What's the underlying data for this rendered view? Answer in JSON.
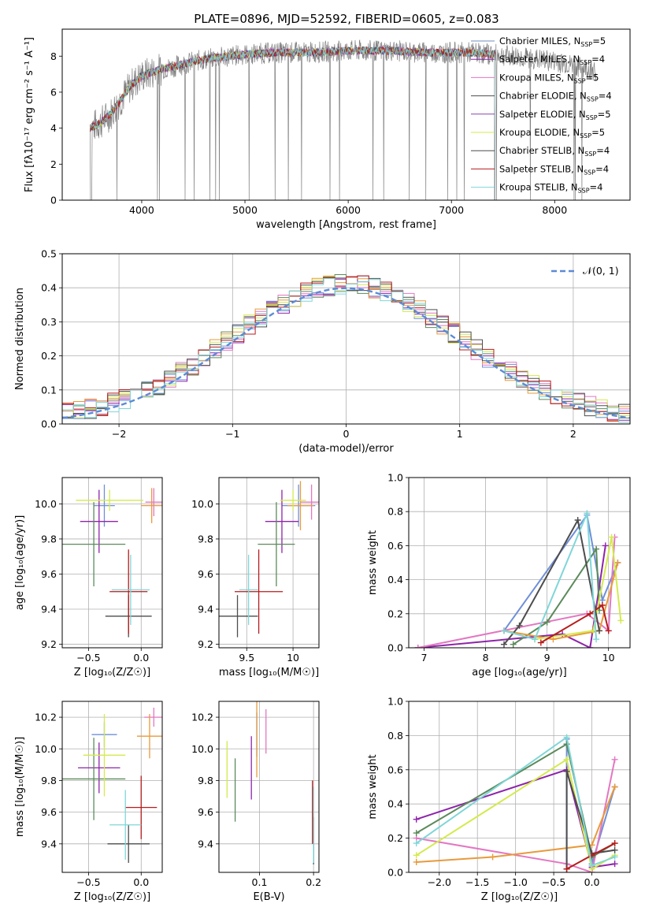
{
  "figure": {
    "title": "PLATE=0896, MJD=52592, FIBERID=0605, z=0.083"
  },
  "colors": {
    "observed": "#808080",
    "models": [
      "#6c8ebf",
      "#8e24aa",
      "#e377c2",
      "#4d4d4d",
      "#8e44ad",
      "#d4ea4c",
      "#4d4d4d",
      "#b71c1c",
      "#7fd6d8"
    ],
    "hist": [
      "#6f8fd8",
      "#8e24aa",
      "#e377c2",
      "#5b8a5b",
      "#e89a3c",
      "#d4ea4c",
      "#4d4d4d",
      "#b71c1c",
      "#7fd6d8"
    ],
    "normal_curve": "#5b8bd6"
  },
  "chart_data": [
    {
      "id": "spectrum",
      "type": "line",
      "xlabel": "wavelength [Angstrom, rest frame]",
      "ylabel": "Flux [f$_\\lambda$10$^{-17}$ erg cm$^{-2}$ s$^{-1}$ A$^{-1}$]",
      "ylabel_display": "Flux [fλ10⁻¹⁷ erg cm⁻² s⁻¹ A⁻¹]",
      "xlim": [
        3230,
        8730
      ],
      "ylim": [
        0,
        9.5
      ],
      "xticks": [
        4000,
        5000,
        6000,
        7000,
        8000
      ],
      "yticks": [
        0,
        2,
        4,
        6,
        8
      ],
      "grid": false,
      "legend_position": "right",
      "legend": [
        {
          "label": "Chabrier MILES, N",
          "sub": "SSP",
          "suffix": "=5"
        },
        {
          "label": "Salpeter MILES, N",
          "sub": "SSP",
          "suffix": "=4"
        },
        {
          "label": "Kroupa MILES, N",
          "sub": "SSP",
          "suffix": "=5"
        },
        {
          "label": "Chabrier ELODIE, N",
          "sub": "SSP",
          "suffix": "=4"
        },
        {
          "label": "Salpeter ELODIE, N",
          "sub": "SSP",
          "suffix": "=5"
        },
        {
          "label": "Kroupa ELODIE, N",
          "sub": "SSP",
          "suffix": "=5"
        },
        {
          "label": "Chabrier STELIB, N",
          "sub": "SSP",
          "suffix": "=4"
        },
        {
          "label": "Salpeter STELIB, N",
          "sub": "SSP",
          "suffix": "=4"
        },
        {
          "label": "Kroupa STELIB, N",
          "sub": "SSP",
          "suffix": "=4"
        }
      ],
      "continuum": {
        "x": [
          3500,
          3600,
          3700,
          3800,
          3900,
          4000,
          4100,
          4200,
          4300,
          4500,
          4700,
          5000,
          5300,
          5600,
          6000,
          6400,
          6800,
          7200,
          7600,
          8000,
          8400
        ],
        "y": [
          4.0,
          4.3,
          4.8,
          5.6,
          6.4,
          6.9,
          7.1,
          7.3,
          7.4,
          7.7,
          7.9,
          8.1,
          8.2,
          8.2,
          8.3,
          8.3,
          8.2,
          8.2,
          8.0,
          7.7,
          7.2
        ]
      }
    },
    {
      "id": "residuals",
      "type": "histogram",
      "xlabel": "(data-model)/error",
      "ylabel": "Normed distribution",
      "xlim": [
        -2.5,
        2.5
      ],
      "ylim": [
        0,
        0.5
      ],
      "xticks": [
        -2,
        -1,
        0,
        1,
        2
      ],
      "yticks": [
        0.0,
        0.1,
        0.2,
        0.3,
        0.4,
        0.5
      ],
      "grid": true,
      "legend_position": "top-right",
      "legend_label": "𝒩(0, 1)",
      "bin_width": 0.1
    },
    {
      "id": "age_vs_Z",
      "type": "scatter",
      "xlabel": "Z [log₁₀(Z/Z☉)]",
      "ylabel": "age  [log₁₀(age/yr)]",
      "xlim": [
        -0.75,
        0.2
      ],
      "ylim": [
        9.18,
        10.15
      ],
      "xticks": [
        -0.5,
        0.0
      ],
      "xtick_labels": [
        "−0.5",
        "0.0"
      ],
      "yticks": [
        9.2,
        9.4,
        9.6,
        9.8,
        10.0
      ],
      "grid": true,
      "points": [
        {
          "x": -0.35,
          "xerr": 0.1,
          "y": 9.99,
          "yerr": 0.12
        },
        {
          "x": -0.4,
          "xerr": 0.18,
          "y": 9.9,
          "yerr": 0.18
        },
        {
          "x": 0.12,
          "xerr": 0.08,
          "y": 10.01,
          "yerr": 0.08
        },
        {
          "x": -0.45,
          "xerr": 0.3,
          "y": 9.77,
          "yerr": 0.24
        },
        {
          "x": 0.1,
          "xerr": 0.1,
          "y": 9.99,
          "yerr": 0.1
        },
        {
          "x": -0.3,
          "xerr": 0.32,
          "y": 10.02,
          "yerr": 0.06
        },
        {
          "x": -0.12,
          "xerr": 0.22,
          "y": 9.36,
          "yerr": 0.12
        },
        {
          "x": -0.12,
          "xerr": 0.18,
          "y": 9.5,
          "yerr": 0.24
        },
        {
          "x": -0.1,
          "xerr": 0.18,
          "y": 9.51,
          "yerr": 0.2
        }
      ]
    },
    {
      "id": "age_vs_mass",
      "type": "scatter",
      "xlabel": "mass [log₁₀(M/M☉)]",
      "ylabel": "",
      "xlim": [
        9.2,
        10.28
      ],
      "ylim": [
        9.18,
        10.15
      ],
      "xticks": [
        9.5,
        10.0
      ],
      "yticks": [
        9.2,
        9.4,
        9.6,
        9.8,
        10.0
      ],
      "grid": true,
      "points": [
        {
          "x": 10.06,
          "xerr": 0.18,
          "y": 9.99,
          "yerr": 0.12
        },
        {
          "x": 9.88,
          "xerr": 0.18,
          "y": 9.9,
          "yerr": 0.18
        },
        {
          "x": 10.2,
          "xerr": 0.12,
          "y": 10.01,
          "yerr": 0.1
        },
        {
          "x": 9.82,
          "xerr": 0.2,
          "y": 9.77,
          "yerr": 0.24
        },
        {
          "x": 10.08,
          "xerr": 0.14,
          "y": 9.99,
          "yerr": 0.14
        },
        {
          "x": 10.0,
          "xerr": 0.14,
          "y": 10.02,
          "yerr": 0.06
        },
        {
          "x": 9.4,
          "xerr": 0.22,
          "y": 9.36,
          "yerr": 0.12
        },
        {
          "x": 9.63,
          "xerr": 0.26,
          "y": 9.5,
          "yerr": 0.24
        },
        {
          "x": 9.52,
          "xerr": 0.1,
          "y": 9.51,
          "yerr": 0.2
        }
      ]
    },
    {
      "id": "mw_vs_age",
      "type": "line",
      "xlabel": "age  [log₁₀(age/yr)]",
      "ylabel": "mass weight",
      "xlim": [
        6.75,
        10.35
      ],
      "ylim": [
        0.0,
        1.0
      ],
      "xticks": [
        7,
        8,
        9,
        10
      ],
      "yticks": [
        0.0,
        0.2,
        0.4,
        0.6,
        0.8,
        1.0
      ],
      "grid": true,
      "series": [
        {
          "x": [
            8.3,
            9.65,
            9.9,
            10.15
          ],
          "y": [
            0.1,
            0.78,
            0.28,
            0.5
          ]
        },
        {
          "x": [
            6.9,
            9.25,
            9.7,
            9.95
          ],
          "y": [
            0.0,
            0.08,
            0.0,
            0.6
          ]
        },
        {
          "x": [
            6.9,
            9.65,
            10.0,
            10.1
          ],
          "y": [
            0.0,
            0.2,
            0.1,
            0.65
          ]
        },
        {
          "x": [
            8.45,
            9.0,
            9.8,
            9.85
          ],
          "y": [
            0.02,
            0.15,
            0.58,
            0.22
          ]
        },
        {
          "x": [
            8.3,
            9.1,
            9.85,
            10.15
          ],
          "y": [
            0.1,
            0.05,
            0.1,
            0.5
          ]
        },
        {
          "x": [
            8.8,
            9.75,
            10.05,
            10.2
          ],
          "y": [
            0.05,
            0.1,
            0.65,
            0.16
          ]
        },
        {
          "x": [
            8.3,
            8.55,
            9.5,
            9.85
          ],
          "y": [
            0.02,
            0.13,
            0.75,
            0.1
          ]
        },
        {
          "x": [
            8.9,
            9.7,
            9.9,
            10.0
          ],
          "y": [
            0.03,
            0.2,
            0.25,
            0.1
          ]
        },
        {
          "x": [
            8.3,
            8.8,
            9.65,
            9.8
          ],
          "y": [
            0.1,
            0.05,
            0.79,
            0.05
          ]
        }
      ]
    },
    {
      "id": "mass_vs_Z",
      "type": "scatter",
      "xlabel": "Z [log₁₀(Z/Z☉)]",
      "ylabel": "mass [log₁₀(M/M☉)]",
      "xlim": [
        -0.75,
        0.2
      ],
      "ylim": [
        9.22,
        10.3
      ],
      "xticks": [
        -0.5,
        0.0
      ],
      "xtick_labels": [
        "−0.5",
        "0.0"
      ],
      "yticks": [
        9.4,
        9.6,
        9.8,
        10.0,
        10.2
      ],
      "grid": true,
      "points": [
        {
          "x": -0.35,
          "xerr": 0.12,
          "y": 10.09,
          "yerr": 0.08
        },
        {
          "x": -0.4,
          "xerr": 0.2,
          "y": 9.88,
          "yerr": 0.16
        },
        {
          "x": 0.12,
          "xerr": 0.09,
          "y": 10.2,
          "yerr": 0.06
        },
        {
          "x": -0.45,
          "xerr": 0.3,
          "y": 9.81,
          "yerr": 0.26
        },
        {
          "x": 0.08,
          "xerr": 0.12,
          "y": 10.08,
          "yerr": 0.14
        },
        {
          "x": -0.35,
          "xerr": 0.2,
          "y": 9.96,
          "yerr": 0.26
        },
        {
          "x": -0.12,
          "xerr": 0.2,
          "y": 9.4,
          "yerr": 0.12
        },
        {
          "x": 0.0,
          "xerr": 0.15,
          "y": 9.63,
          "yerr": 0.2
        },
        {
          "x": -0.15,
          "xerr": 0.15,
          "y": 9.52,
          "yerr": 0.22
        }
      ]
    },
    {
      "id": "mass_vs_EBV",
      "type": "scatter",
      "xlabel": "E(B-V)",
      "ylabel": "",
      "xlim": [
        0.025,
        0.21
      ],
      "ylim": [
        9.22,
        10.3
      ],
      "xticks": [
        0.1,
        0.2
      ],
      "yticks": [
        9.4,
        9.6,
        9.8,
        10.0,
        10.2
      ],
      "grid": true,
      "points": [
        {
          "x": 0.095,
          "y": 10.09,
          "yerr": 0.14
        },
        {
          "x": 0.085,
          "y": 9.88,
          "yerr": 0.2
        },
        {
          "x": 0.112,
          "y": 10.11,
          "yerr": 0.14
        },
        {
          "x": 0.055,
          "y": 9.74,
          "yerr": 0.2
        },
        {
          "x": 0.095,
          "y": 10.06,
          "yerr": 0.24
        },
        {
          "x": 0.04,
          "y": 9.87,
          "yerr": 0.18
        },
        {
          "x": 0.2,
          "y": 9.42,
          "yerr": 0.15
        },
        {
          "x": 0.198,
          "y": 9.6,
          "yerr": 0.2
        },
        {
          "x": 0.2,
          "y": 9.52,
          "yerr": 0.24
        }
      ]
    },
    {
      "id": "mw_vs_Z",
      "type": "line",
      "xlabel": "Z [log₁₀(Z/Z☉)]",
      "ylabel": "mass weight",
      "xlim": [
        -2.4,
        0.5
      ],
      "ylim": [
        0.0,
        1.0
      ],
      "xticks": [
        -2.0,
        -1.5,
        -1.0,
        -0.5,
        0.0
      ],
      "xtick_labels": [
        "−2.0",
        "−1.5",
        "−1.0",
        "−0.5",
        "0.0"
      ],
      "yticks": [
        0.0,
        0.2,
        0.4,
        0.6,
        0.8,
        1.0
      ],
      "grid": true,
      "series": [
        {
          "x": [
            -0.33,
            -0.33,
            0.0,
            0.3
          ],
          "y": [
            0.02,
            0.78,
            0.05,
            0.5
          ]
        },
        {
          "x": [
            -2.3,
            -0.33,
            0.0,
            0.3
          ],
          "y": [
            0.31,
            0.6,
            0.03,
            0.05
          ]
        },
        {
          "x": [
            -2.3,
            -0.33,
            0.0,
            0.3
          ],
          "y": [
            0.2,
            0.05,
            0.0,
            0.66
          ]
        },
        {
          "x": [
            -2.3,
            -0.33,
            0.0,
            0.3
          ],
          "y": [
            0.23,
            0.75,
            0.09,
            0.17
          ]
        },
        {
          "x": [
            -2.3,
            -1.3,
            0.0,
            0.3
          ],
          "y": [
            0.06,
            0.09,
            0.16,
            0.5
          ]
        },
        {
          "x": [
            -2.3,
            -0.33,
            0.0,
            0.3
          ],
          "y": [
            0.1,
            0.66,
            0.02,
            0.1
          ]
        },
        {
          "x": [
            -0.33,
            -0.33,
            0.0,
            0.3
          ],
          "y": [
            0.02,
            0.59,
            0.11,
            0.13
          ]
        },
        {
          "x": [
            -0.33,
            0.0,
            0.3
          ],
          "y": [
            0.02,
            0.1,
            0.17
          ]
        },
        {
          "x": [
            -2.3,
            -0.33,
            0.0,
            0.3
          ],
          "y": [
            0.17,
            0.79,
            0.04,
            0.09
          ]
        }
      ]
    }
  ]
}
